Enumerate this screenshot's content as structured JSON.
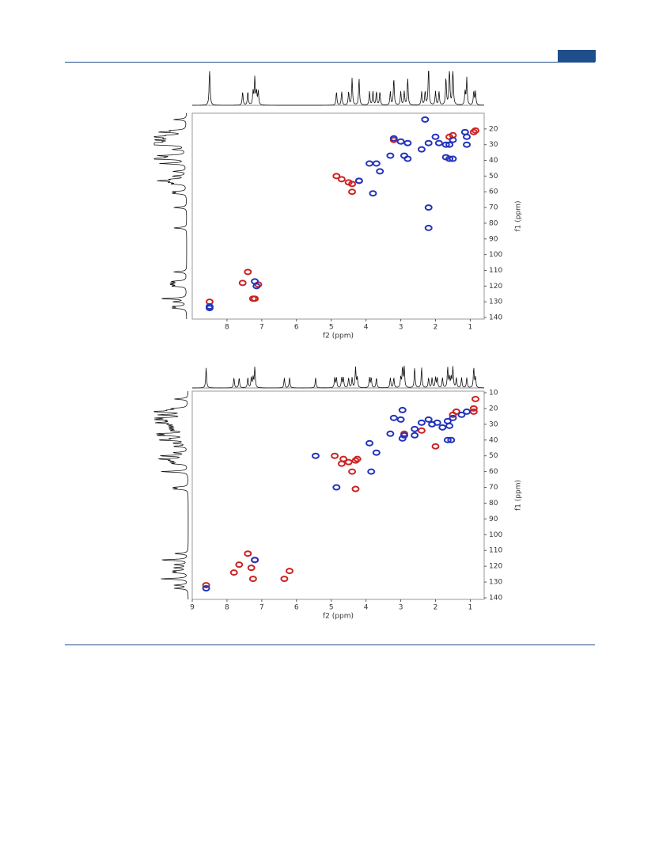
{
  "chart_data": [
    {
      "type": "scatter",
      "xlabel": "f2 (ppm)",
      "ylabel": "f1 (ppm)",
      "xlim": [
        9.0,
        0.6
      ],
      "ylim": [
        10,
        141
      ],
      "xticks": [
        8,
        7,
        6,
        5,
        4,
        3,
        2,
        1
      ],
      "yticks": [
        20,
        30,
        40,
        50,
        60,
        70,
        80,
        90,
        100,
        110,
        120,
        130,
        140
      ],
      "series": [
        {
          "color": "#cc2222",
          "x": [
            4.85,
            4.7,
            4.5,
            4.4,
            4.2,
            4.4,
            3.2,
            1.6,
            1.5,
            0.9,
            0.85,
            7.4,
            7.55,
            7.1,
            7.2,
            7.25,
            8.5
          ],
          "values": [
            50,
            52,
            54,
            55,
            53,
            60,
            27,
            25,
            24,
            22,
            21,
            111,
            118,
            119,
            128,
            128,
            130
          ]
        },
        {
          "color": "#2233bb",
          "x": [
            2.3,
            3.2,
            3.0,
            2.8,
            3.3,
            2.9,
            2.8,
            3.9,
            3.7,
            3.6,
            3.8,
            4.2,
            2.0,
            1.9,
            1.7,
            1.6,
            1.5,
            1.15,
            1.1,
            1.1,
            1.6,
            1.5,
            2.4,
            2.2,
            2.2,
            2.2,
            7.2,
            7.15,
            8.5,
            8.5,
            1.7
          ],
          "values": [
            14,
            26,
            28,
            29,
            37,
            37,
            39,
            42,
            42,
            47,
            61,
            53,
            25,
            29,
            30,
            30,
            27,
            22,
            25,
            30,
            39,
            39,
            33,
            29,
            70,
            83,
            117,
            120,
            133,
            134,
            38
          ]
        }
      ]
    },
    {
      "type": "scatter",
      "xlabel": "f2 (ppm)",
      "ylabel": "f1 (ppm)",
      "xlim": [
        9.0,
        0.6
      ],
      "ylim": [
        9,
        141
      ],
      "xticks": [
        9,
        8,
        7,
        6,
        5,
        4,
        3,
        2,
        1
      ],
      "yticks": [
        10,
        20,
        30,
        40,
        50,
        60,
        70,
        80,
        90,
        100,
        110,
        120,
        130,
        140
      ],
      "series": [
        {
          "color": "#cc2222",
          "x": [
            7.4,
            7.65,
            7.8,
            7.3,
            7.25,
            6.35,
            6.2,
            8.6,
            4.9,
            4.65,
            4.7,
            4.5,
            4.3,
            4.25,
            4.4,
            4.3,
            2.4,
            2.0,
            1.4,
            1.5,
            0.9,
            0.85,
            0.9,
            7.2,
            2.9
          ],
          "values": [
            112,
            119,
            124,
            121,
            128,
            128,
            123,
            132,
            50,
            52,
            55,
            54,
            53,
            52,
            60,
            71,
            34,
            44,
            22,
            24,
            22,
            14,
            20,
            116,
            36
          ]
        },
        {
          "color": "#2233bb",
          "x": [
            8.6,
            7.2,
            5.45,
            4.85,
            3.9,
            3.7,
            3.85,
            3.2,
            3.0,
            2.95,
            3.3,
            2.9,
            2.95,
            2.6,
            2.4,
            2.2,
            2.1,
            1.8,
            1.65,
            1.6,
            1.5,
            1.55,
            1.65,
            1.25,
            1.1,
            2.6,
            1.95
          ],
          "values": [
            134,
            116,
            50,
            70,
            42,
            48,
            60,
            26,
            27,
            21,
            36,
            37,
            39,
            33,
            29,
            27,
            30,
            32,
            28,
            31,
            26,
            40,
            40,
            24,
            22,
            37,
            29
          ]
        }
      ]
    }
  ]
}
